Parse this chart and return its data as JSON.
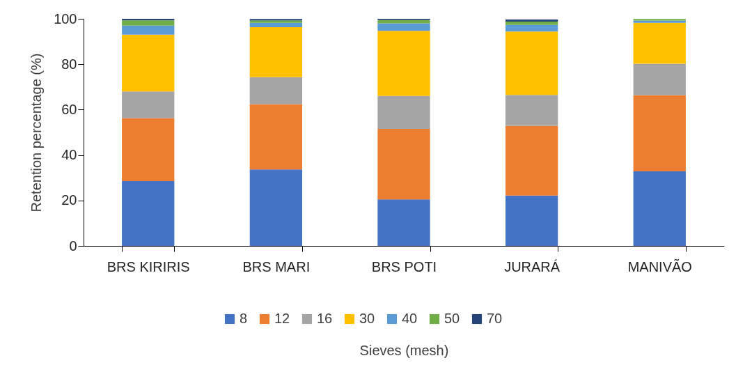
{
  "chart_data": {
    "type": "bar",
    "stacked": true,
    "xlabel": "Sieves (mesh)",
    "ylabel": "Retention percentage (%)",
    "categories": [
      "BRS KIRIRIS",
      "BRS MARI",
      "BRS POTI",
      "JURARÁ",
      "MANIVÃO"
    ],
    "ylim": [
      0,
      100
    ],
    "yticks": [
      0,
      20,
      40,
      60,
      80,
      100
    ],
    "grid": false,
    "legend": "bottom",
    "series": [
      {
        "name": "8",
        "color": "#4472c4",
        "values": [
          28.5,
          33.7,
          20.5,
          22.2,
          32.8
        ]
      },
      {
        "name": "12",
        "color": "#ed7d31",
        "values": [
          27.8,
          28.7,
          31.0,
          30.6,
          33.5
        ]
      },
      {
        "name": "16",
        "color": "#a5a5a5",
        "values": [
          11.7,
          11.9,
          14.5,
          13.7,
          13.9
        ]
      },
      {
        "name": "30",
        "color": "#ffc000",
        "values": [
          25.0,
          22.0,
          28.7,
          27.9,
          18.0
        ]
      },
      {
        "name": "40",
        "color": "#5b9bd5",
        "values": [
          4.0,
          1.9,
          3.3,
          2.9,
          1.0
        ]
      },
      {
        "name": "50",
        "color": "#70ad47",
        "values": [
          2.3,
          1.0,
          1.5,
          1.5,
          0.7
        ]
      },
      {
        "name": "70",
        "color": "#264478",
        "values": [
          0.7,
          0.7,
          0.5,
          0.9,
          0
        ]
      }
    ]
  }
}
